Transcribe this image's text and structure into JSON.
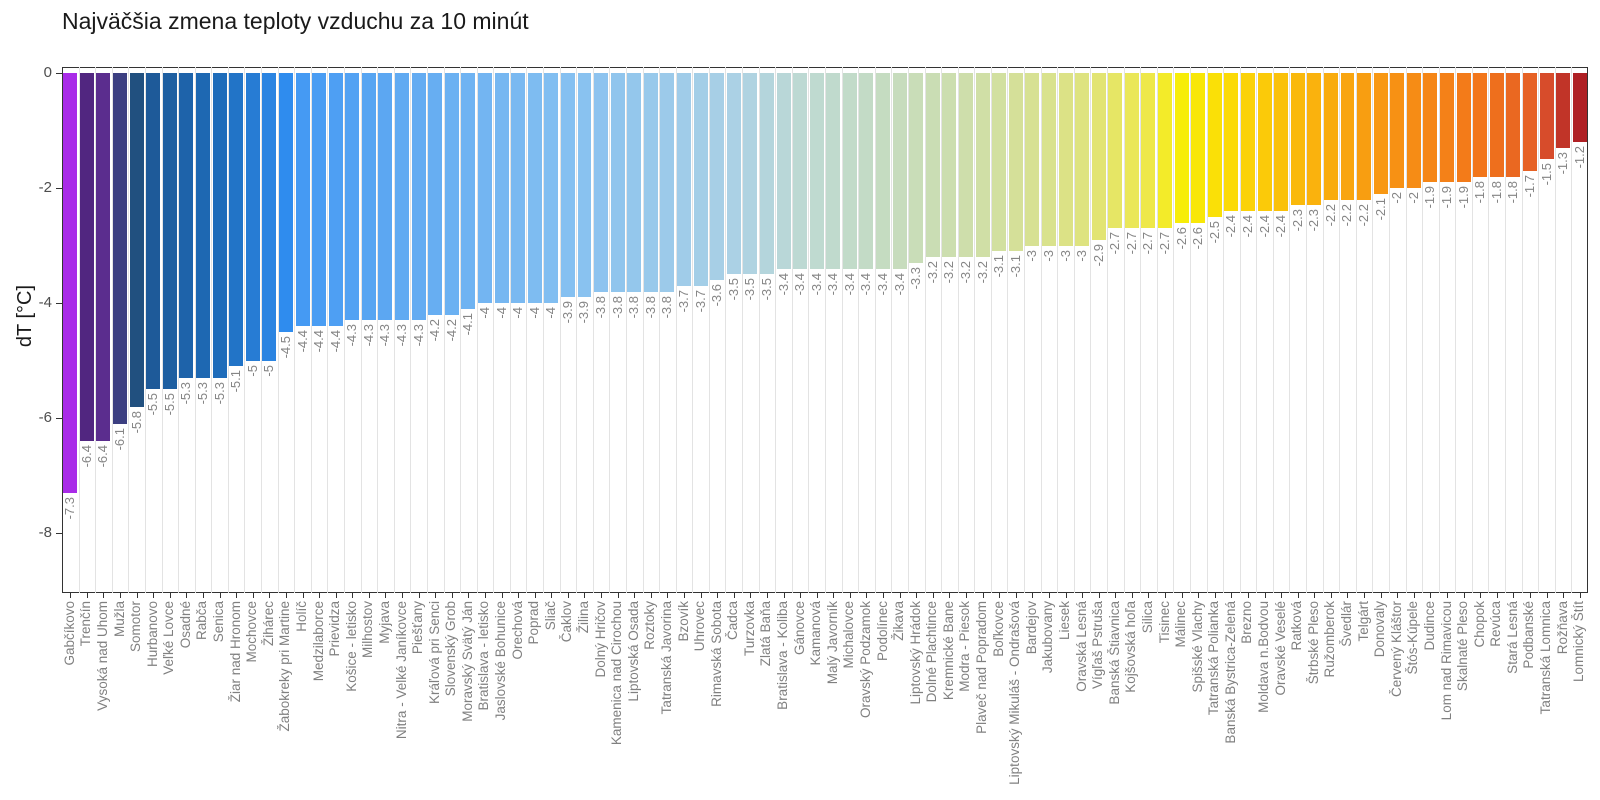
{
  "title": "Najväčšia zmena teploty vzduchu za 10 minút",
  "chart_data": {
    "type": "bar",
    "title": "Najväčšia zmena teploty vzduchu za 10 minút",
    "xlabel": "",
    "ylabel": "dT [°C]",
    "yticks": [
      0,
      -2,
      -4,
      -6,
      -8
    ],
    "ylim": [
      0,
      -9.1
    ],
    "grid": "vertical-only",
    "legend": "none",
    "colors": {
      "grid": "#e3e3e3",
      "panel_border": "#333333",
      "value_label": "#858585",
      "axis_label": "#808080",
      "ytick_label": "#4d4d4d",
      "title": "#1a1a1a"
    },
    "palette_stops": [
      [
        0,
        "#A92BE8"
      ],
      [
        1,
        "#512680"
      ],
      [
        2,
        "#5B2D8E"
      ],
      [
        3,
        "#3C3F81"
      ],
      [
        4,
        "#21507F"
      ],
      [
        5,
        "#1E5A99"
      ],
      [
        9,
        "#1E6CBA"
      ],
      [
        13,
        "#2F8CEE"
      ],
      [
        14,
        "#459AF3"
      ],
      [
        20,
        "#60AAF2"
      ],
      [
        30,
        "#85C0F1"
      ],
      [
        40,
        "#ABD1E5"
      ],
      [
        44,
        "#BDD9D3"
      ],
      [
        48,
        "#C3DBC6"
      ],
      [
        55,
        "#D0DFA6"
      ],
      [
        61,
        "#DEE380"
      ],
      [
        65,
        "#EEE84A"
      ],
      [
        67,
        "#F7ED08"
      ],
      [
        70,
        "#FBDA07"
      ],
      [
        74,
        "#FAB90B"
      ],
      [
        80,
        "#F79114"
      ],
      [
        85,
        "#F2761A"
      ],
      [
        88,
        "#E66124"
      ],
      [
        89,
        "#D74C2B"
      ],
      [
        90,
        "#C13428"
      ],
      [
        91,
        "#AF2024"
      ]
    ],
    "categories": [
      "Gabčíkovo",
      "Trenčín",
      "Vysoká nad Uhom",
      "Mužla",
      "Somotor",
      "Hurbanovo",
      "Veľké Lovce",
      "Osadné",
      "Rabča",
      "Senica",
      "Žiar nad Hronom",
      "Mochovce",
      "Žihárec",
      "Žabokreky pri Martine",
      "Holíč",
      "Medzilaborce",
      "Prievidza",
      "Košice - letisko",
      "Milhostov",
      "Myjava",
      "Nitra - Velké Janíkovce",
      "Piešťany",
      "Kráľová pri Senci",
      "Slovenský Grob",
      "Moravský Svätý Ján",
      "Bratislava - letisko",
      "Jaslovské Bohunice",
      "Orechová",
      "Poprad",
      "Sliač",
      "Čaklov",
      "Žilina",
      "Dolný Hričov",
      "Kamenica nad Cirochou",
      "Liptovská Osada",
      "Roztoky",
      "Tatranská Javorina",
      "Bzovík",
      "Uhrovec",
      "Rimavská Sobota",
      "Čadca",
      "Turzovka",
      "Zlatá Baňa",
      "Bratislava - Koliba",
      "Gánovce",
      "Kamanová",
      "Malý Javorník",
      "Michalovce",
      "Oravský Podzamok",
      "Podolínec",
      "Žikava",
      "Liptovský Hrádok",
      "Dolné Plachtince",
      "Kremnické Bane",
      "Modra - Piesok",
      "Plaveč nad Popradom",
      "Boľkovce",
      "Liptovský Mikuláš - Ondrašová",
      "Bardejov",
      "Jakubovany",
      "Liesek",
      "Oravská Lesná",
      "Vígľaš Pstruša",
      "Banská Štiavnica",
      "Kojšovská hoľa",
      "Silica",
      "Tisinec",
      "Málinec",
      "Spišské Vlachy",
      "Tatranská Polianka",
      "Banská Bystrica-Zelená",
      "Brezno",
      "Moldava n.Bodvou",
      "Oravské Veselé",
      "Ratková",
      "Štrbské Pleso",
      "Ružomberok",
      "Švedlár",
      "Telgárt",
      "Donovaly",
      "Červený Kláštor",
      "Štós-Kúpele",
      "Dudince",
      "Lom nad Rimavicou",
      "Skalnaté Pleso",
      "Chopok",
      "Revúca",
      "Stará Lesná",
      "Podbanské",
      "Tatranská Lomnica",
      "Rožňava",
      "Lomnický Štít"
    ],
    "values": [
      -7.3,
      -6.4,
      -6.4,
      -6.1,
      -5.8,
      -5.5,
      -5.5,
      -5.3,
      -5.3,
      -5.3,
      -5.1,
      -5,
      -5,
      -4.5,
      -4.4,
      -4.4,
      -4.4,
      -4.3,
      -4.3,
      -4.3,
      -4.3,
      -4.3,
      -4.2,
      -4.2,
      -4.1,
      -4,
      -4,
      -4,
      -4,
      -4,
      -3.9,
      -3.9,
      -3.8,
      -3.8,
      -3.8,
      -3.8,
      -3.8,
      -3.7,
      -3.7,
      -3.6,
      -3.5,
      -3.5,
      -3.5,
      -3.4,
      -3.4,
      -3.4,
      -3.4,
      -3.4,
      -3.4,
      -3.4,
      -3.4,
      -3.3,
      -3.2,
      -3.2,
      -3.2,
      -3.2,
      -3.1,
      -3.1,
      -3,
      -3,
      -3,
      -3,
      -2.9,
      -2.7,
      -2.7,
      -2.7,
      -2.7,
      -2.6,
      -2.6,
      -2.5,
      -2.4,
      -2.4,
      -2.4,
      -2.4,
      -2.3,
      -2.3,
      -2.2,
      -2.2,
      -2.2,
      -2.1,
      -2,
      -2,
      -1.9,
      -1.9,
      -1.9,
      -1.8,
      -1.8,
      -1.8,
      -1.7,
      -1.5,
      -1.3,
      -1.2
    ]
  }
}
